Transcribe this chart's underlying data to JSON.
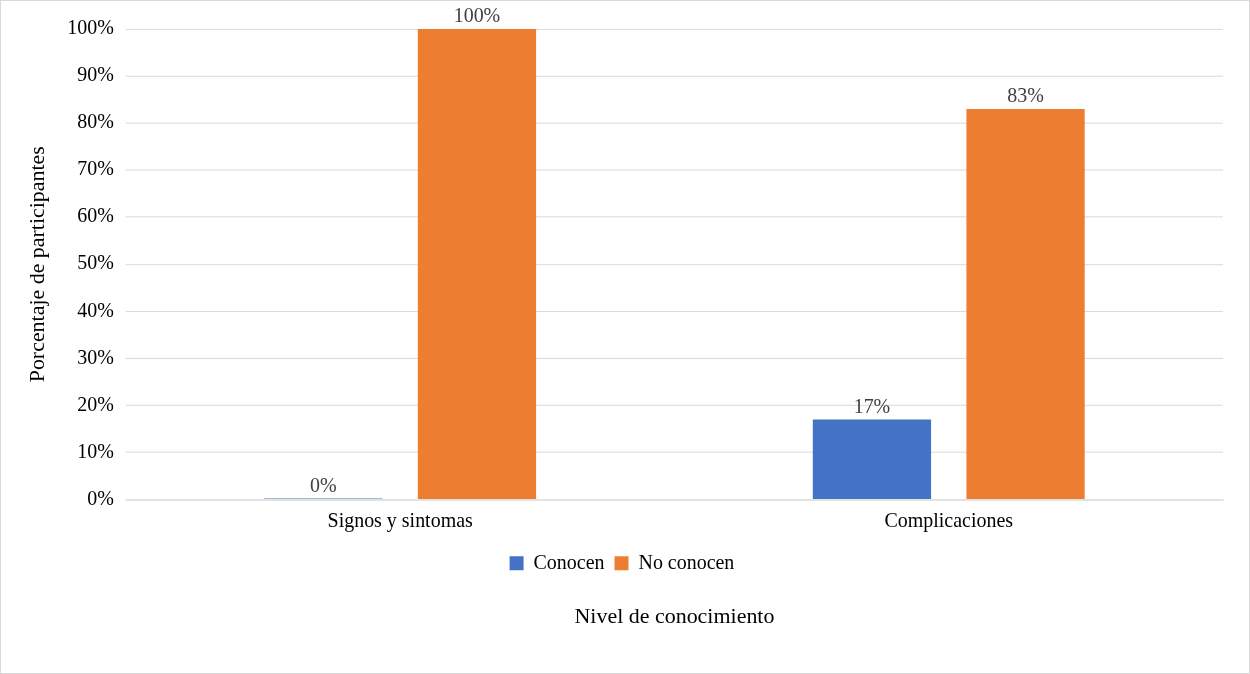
{
  "chart_data": {
    "type": "bar",
    "xlabel": "Nivel de conocimiento",
    "ylabel": "Porcentaje de participantes",
    "categories": [
      "Signos y sintomas",
      "Complicaciones"
    ],
    "series": [
      {
        "name": "Conocen",
        "color": "#4472c4",
        "values": [
          0,
          17
        ],
        "value_labels": [
          "0%",
          "17%"
        ]
      },
      {
        "name": "No conocen",
        "color": "#ed7d31",
        "values": [
          100,
          83
        ],
        "value_labels": [
          "100%",
          "83%"
        ]
      }
    ],
    "ylim": [
      0,
      100
    ],
    "yticks": [
      {
        "value": 0,
        "label": "0%"
      },
      {
        "value": 10,
        "label": "10%"
      },
      {
        "value": 20,
        "label": "20%"
      },
      {
        "value": 30,
        "label": "30%"
      },
      {
        "value": 40,
        "label": "40%"
      },
      {
        "value": 50,
        "label": "50%"
      },
      {
        "value": 60,
        "label": "60%"
      },
      {
        "value": 70,
        "label": "70%"
      },
      {
        "value": 80,
        "label": "80%"
      },
      {
        "value": 90,
        "label": "90%"
      },
      {
        "value": 100,
        "label": "100%"
      }
    ],
    "grid": "y",
    "legend": "bottom"
  }
}
